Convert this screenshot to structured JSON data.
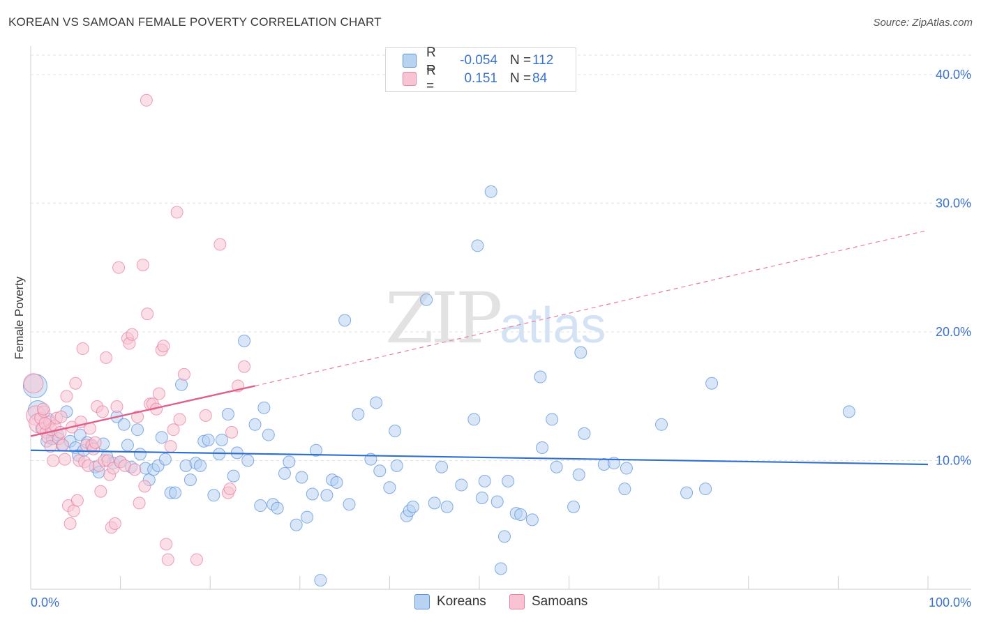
{
  "title": "KOREAN VS SAMOAN FEMALE POVERTY CORRELATION CHART",
  "source": "Source: ZipAtlas.com",
  "watermark": {
    "zip": "ZIP",
    "atlas": "atlas"
  },
  "legend": {
    "rows": [
      {
        "r_label": "R =",
        "r_value": "-0.054",
        "n_label": "N =",
        "n_value": "112",
        "color": "#5b93d9",
        "fill": "#b8d2f2"
      },
      {
        "r_label": "R =",
        "r_value": "0.151",
        "n_label": "N =",
        "n_value": "84",
        "color": "#e77fa1",
        "fill": "#f8c4d4"
      }
    ]
  },
  "bottom_legend": [
    {
      "label": "Koreans",
      "fill": "#b8d2f2",
      "color": "#5b93d9"
    },
    {
      "label": "Samoans",
      "fill": "#f8c4d4",
      "color": "#e77fa1"
    }
  ],
  "chart_data": {
    "type": "scatter",
    "title": "KOREAN VS SAMOAN FEMALE POVERTY CORRELATION CHART",
    "xlabel": "",
    "ylabel": "Female Poverty",
    "xlim": [
      0,
      100
    ],
    "ylim": [
      0,
      42
    ],
    "x_tick_labels": [
      "0.0%",
      "100.0%"
    ],
    "y_ticks": [
      10,
      20,
      30,
      40
    ],
    "y_tick_labels": [
      "10.0%",
      "20.0%",
      "30.0%",
      "40.0%"
    ],
    "grid": true,
    "series": [
      {
        "name": "Koreans",
        "color": "#5b93d9",
        "fill": "#b8d2f2",
        "trend": {
          "x0": 0,
          "y0": 10.8,
          "x1": 100,
          "y1": 9.7,
          "dashed_from": null
        },
        "points": [
          [
            0.5,
            15.8,
            3
          ],
          [
            0.8,
            13.9,
            2
          ],
          [
            1.2,
            12.5,
            1
          ],
          [
            1.8,
            11.5,
            1
          ],
          [
            2.0,
            13.2,
            1
          ],
          [
            2.4,
            11.7,
            1
          ],
          [
            3.0,
            12.0,
            1
          ],
          [
            3.5,
            11.2,
            1
          ],
          [
            4.0,
            13.8,
            1
          ],
          [
            4.4,
            11.5,
            1
          ],
          [
            5.0,
            11.0,
            1
          ],
          [
            5.3,
            10.4,
            1
          ],
          [
            5.5,
            12.0,
            1
          ],
          [
            5.9,
            10.8,
            1
          ],
          [
            6.3,
            11.4,
            1
          ],
          [
            6.8,
            11.1,
            1
          ],
          [
            7.2,
            9.5,
            1
          ],
          [
            7.6,
            9.1,
            1
          ],
          [
            8.1,
            11.3,
            1
          ],
          [
            8.5,
            10.3,
            1
          ],
          [
            9.2,
            9.8,
            1
          ],
          [
            9.6,
            13.4,
            1
          ],
          [
            10.0,
            9.9,
            1
          ],
          [
            10.4,
            12.8,
            1
          ],
          [
            10.8,
            11.2,
            1
          ],
          [
            11.2,
            9.5,
            1
          ],
          [
            11.9,
            12.4,
            1
          ],
          [
            12.2,
            10.5,
            1
          ],
          [
            12.8,
            9.4,
            1
          ],
          [
            13.2,
            8.5,
            1
          ],
          [
            13.7,
            9.3,
            1
          ],
          [
            14.2,
            9.6,
            1
          ],
          [
            14.6,
            11.8,
            1
          ],
          [
            15.0,
            10.1,
            1
          ],
          [
            15.6,
            7.5,
            1
          ],
          [
            16.1,
            7.5,
            1
          ],
          [
            16.8,
            15.9,
            1
          ],
          [
            17.3,
            9.6,
            1
          ],
          [
            17.8,
            8.5,
            1
          ],
          [
            18.4,
            9.8,
            1
          ],
          [
            18.9,
            9.6,
            1
          ],
          [
            19.3,
            11.5,
            1
          ],
          [
            19.8,
            11.6,
            1
          ],
          [
            20.4,
            7.3,
            1
          ],
          [
            21.0,
            10.5,
            1
          ],
          [
            21.3,
            11.6,
            1
          ],
          [
            22.0,
            13.6,
            1
          ],
          [
            22.6,
            8.8,
            1
          ],
          [
            23.0,
            10.6,
            1
          ],
          [
            23.8,
            19.3,
            1
          ],
          [
            24.2,
            10.0,
            1
          ],
          [
            25.0,
            12.8,
            1
          ],
          [
            25.6,
            6.5,
            1
          ],
          [
            26.0,
            14.1,
            1
          ],
          [
            26.5,
            12.0,
            1
          ],
          [
            27.0,
            6.6,
            1
          ],
          [
            27.5,
            6.3,
            1
          ],
          [
            28.3,
            9.0,
            1
          ],
          [
            28.8,
            9.9,
            1
          ],
          [
            29.6,
            5.0,
            1
          ],
          [
            30.2,
            8.7,
            1
          ],
          [
            30.8,
            5.6,
            1
          ],
          [
            31.4,
            7.4,
            1
          ],
          [
            31.8,
            10.8,
            1
          ],
          [
            32.3,
            0.7,
            1
          ],
          [
            33.0,
            7.3,
            1
          ],
          [
            33.6,
            8.5,
            1
          ],
          [
            34.1,
            8.3,
            1
          ],
          [
            35.0,
            20.9,
            1
          ],
          [
            35.5,
            6.6,
            1
          ],
          [
            36.5,
            13.6,
            1
          ],
          [
            37.9,
            10.1,
            1
          ],
          [
            38.5,
            14.5,
            1
          ],
          [
            38.9,
            9.2,
            1
          ],
          [
            40.0,
            7.9,
            1
          ],
          [
            40.6,
            12.3,
            1
          ],
          [
            40.8,
            9.6,
            1
          ],
          [
            41.9,
            5.7,
            1
          ],
          [
            42.2,
            6.1,
            1
          ],
          [
            42.6,
            6.4,
            1
          ],
          [
            44.1,
            22.5,
            1
          ],
          [
            45.0,
            6.7,
            1
          ],
          [
            45.8,
            9.5,
            1
          ],
          [
            46.4,
            6.4,
            1
          ],
          [
            48.0,
            8.1,
            1
          ],
          [
            49.4,
            13.2,
            1
          ],
          [
            49.8,
            26.7,
            1
          ],
          [
            50.3,
            7.1,
            1
          ],
          [
            50.6,
            8.4,
            1
          ],
          [
            51.3,
            30.9,
            1
          ],
          [
            52.0,
            6.8,
            1
          ],
          [
            52.4,
            1.6,
            1
          ],
          [
            52.8,
            4.1,
            1
          ],
          [
            53.2,
            8.4,
            1
          ],
          [
            54.1,
            5.9,
            1
          ],
          [
            54.6,
            5.8,
            1
          ],
          [
            55.9,
            5.4,
            1
          ],
          [
            56.8,
            16.5,
            1
          ],
          [
            57.0,
            11.0,
            1
          ],
          [
            58.1,
            13.2,
            1
          ],
          [
            58.6,
            9.5,
            1
          ],
          [
            60.5,
            6.4,
            1
          ],
          [
            61.1,
            8.9,
            1
          ],
          [
            61.3,
            18.4,
            1
          ],
          [
            61.7,
            12.1,
            1
          ],
          [
            63.9,
            9.7,
            1
          ],
          [
            65.0,
            9.8,
            1
          ],
          [
            66.2,
            7.8,
            1
          ],
          [
            66.4,
            9.4,
            1
          ],
          [
            70.3,
            12.8,
            1
          ],
          [
            75.9,
            16.0,
            1
          ],
          [
            73.1,
            7.5,
            1
          ],
          [
            75.2,
            7.8,
            1
          ],
          [
            91.2,
            13.8,
            1
          ]
        ]
      },
      {
        "name": "Samoans",
        "color": "#e77fa1",
        "fill": "#f8c4d4",
        "trend": {
          "x0": 0,
          "y0": 11.9,
          "x1": 25,
          "y1": 15.8,
          "x_end": 100,
          "y_end": 27.9
        },
        "points": [
          [
            0.3,
            16.0,
            2
          ],
          [
            0.6,
            13.5,
            2
          ],
          [
            0.9,
            12.9,
            2
          ],
          [
            1.1,
            13.3,
            1
          ],
          [
            1.3,
            12.5,
            1
          ],
          [
            1.5,
            13.8,
            1
          ],
          [
            1.7,
            12.2,
            1
          ],
          [
            1.9,
            11.8,
            1
          ],
          [
            2.1,
            13.0,
            1
          ],
          [
            2.3,
            12.4,
            1
          ],
          [
            2.5,
            10.0,
            1
          ],
          [
            2.7,
            12.7,
            1
          ],
          [
            2.9,
            13.3,
            1
          ],
          [
            3.1,
            11.7,
            1
          ],
          [
            3.3,
            12.2,
            1
          ],
          [
            3.6,
            11.2,
            1
          ],
          [
            3.8,
            10.1,
            1
          ],
          [
            4.0,
            15.0,
            1
          ],
          [
            4.2,
            6.5,
            1
          ],
          [
            4.4,
            5.1,
            1
          ],
          [
            4.6,
            12.6,
            1
          ],
          [
            4.8,
            6.1,
            1
          ],
          [
            5.0,
            16.0,
            1
          ],
          [
            5.2,
            6.9,
            1
          ],
          [
            5.4,
            10.0,
            1
          ],
          [
            5.6,
            13.0,
            1
          ],
          [
            5.8,
            18.7,
            1
          ],
          [
            6.0,
            9.9,
            1
          ],
          [
            6.2,
            11.2,
            1
          ],
          [
            6.4,
            9.6,
            1
          ],
          [
            6.6,
            12.5,
            1
          ],
          [
            6.8,
            11.2,
            1
          ],
          [
            7.0,
            10.9,
            1
          ],
          [
            7.2,
            11.4,
            1
          ],
          [
            7.4,
            14.2,
            1
          ],
          [
            7.6,
            9.6,
            1
          ],
          [
            7.8,
            7.6,
            1
          ],
          [
            8.0,
            13.8,
            1
          ],
          [
            8.2,
            10.0,
            1
          ],
          [
            8.4,
            18.0,
            1
          ],
          [
            8.6,
            10.0,
            1
          ],
          [
            8.8,
            8.9,
            1
          ],
          [
            9.0,
            4.8,
            1
          ],
          [
            9.2,
            9.4,
            1
          ],
          [
            9.4,
            5.1,
            1
          ],
          [
            9.6,
            14.2,
            1
          ],
          [
            9.8,
            25.0,
            1
          ],
          [
            10.0,
            9.9,
            1
          ],
          [
            10.5,
            9.6,
            1
          ],
          [
            10.8,
            19.5,
            1
          ],
          [
            11.0,
            19.1,
            1
          ],
          [
            11.3,
            19.8,
            1
          ],
          [
            11.6,
            9.3,
            1
          ],
          [
            11.9,
            13.4,
            1
          ],
          [
            12.1,
            6.7,
            1
          ],
          [
            12.5,
            25.2,
            1
          ],
          [
            12.7,
            8.0,
            1
          ],
          [
            13.0,
            21.4,
            1
          ],
          [
            13.3,
            14.4,
            1
          ],
          [
            13.6,
            14.4,
            1
          ],
          [
            14.0,
            14.0,
            1
          ],
          [
            14.3,
            15.2,
            1
          ],
          [
            14.6,
            18.6,
            1
          ],
          [
            14.8,
            18.9,
            1
          ],
          [
            15.1,
            3.5,
            1
          ],
          [
            15.3,
            2.3,
            1
          ],
          [
            15.6,
            11.1,
            1
          ],
          [
            15.9,
            12.4,
            1
          ],
          [
            16.3,
            29.3,
            1
          ],
          [
            16.6,
            13.2,
            1
          ],
          [
            17.1,
            16.7,
            1
          ],
          [
            18.5,
            2.3,
            1
          ],
          [
            19.5,
            13.5,
            1
          ],
          [
            21.1,
            26.8,
            1
          ],
          [
            22.0,
            7.5,
            1
          ],
          [
            22.2,
            7.8,
            1
          ],
          [
            22.4,
            12.2,
            1
          ],
          [
            23.1,
            15.8,
            1
          ],
          [
            23.8,
            17.3,
            1
          ],
          [
            12.9,
            38.0,
            1
          ],
          [
            2.2,
            11.1,
            1
          ],
          [
            1.6,
            12.9,
            1
          ],
          [
            1.4,
            14.0,
            1
          ],
          [
            3.4,
            13.4,
            1
          ]
        ]
      }
    ]
  }
}
